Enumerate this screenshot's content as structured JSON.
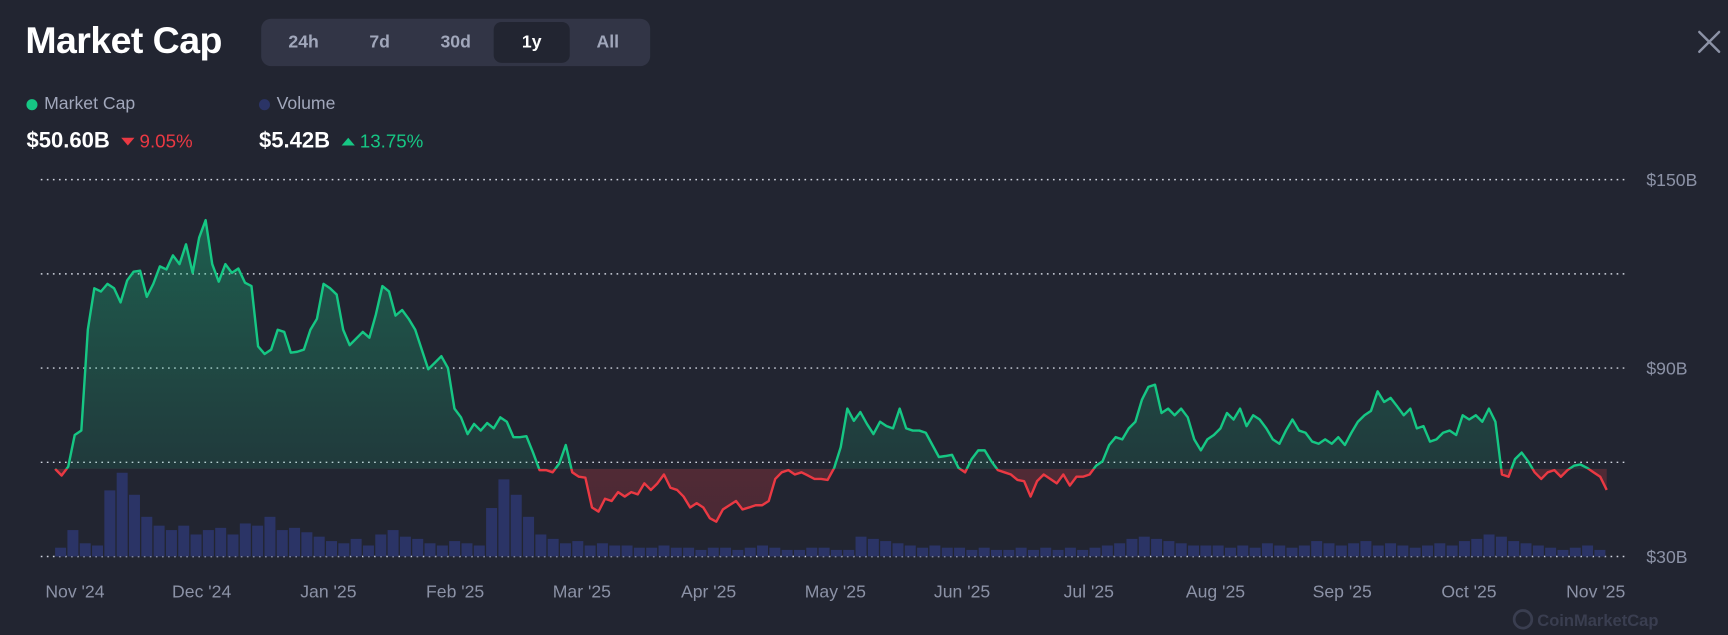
{
  "header": {
    "title": "Market Cap",
    "ranges": [
      "24h",
      "7d",
      "30d",
      "1y",
      "All"
    ],
    "active_range": "1y"
  },
  "legend": {
    "market_cap": {
      "label": "Market Cap",
      "value": "$50.60B",
      "change": "9.05%",
      "direction": "down",
      "color": "#16c784"
    },
    "volume": {
      "label": "Volume",
      "value": "$5.42B",
      "change": "13.75%",
      "direction": "up",
      "color": "#2b3466"
    }
  },
  "colors": {
    "up": "#16c784",
    "down": "#ea3943",
    "volume": "#2b3466",
    "background": "#222531"
  },
  "watermark": "CoinMarketCap",
  "chart_data": {
    "type": "area",
    "title": "",
    "xlabel": "",
    "ylabel": "",
    "ylim": [
      30,
      150
    ],
    "y_ticks": [
      150,
      120,
      90,
      60,
      30
    ],
    "y_tick_labels": [
      "$150B",
      "",
      "$90B",
      "",
      "$30B"
    ],
    "x_tick_labels": [
      "Nov '24",
      "Dec '24",
      "Jan '25",
      "Feb '25",
      "Mar '25",
      "Apr '25",
      "May '25",
      "Jun '25",
      "Jul '25",
      "Aug '25",
      "Sep '25",
      "Oct '25",
      "Nov '25"
    ],
    "grid": "horizontal dotted",
    "baseline": 57.9,
    "series": [
      {
        "values": [
          57.9,
          55.8,
          58.6,
          68.7,
          70.1,
          102.2,
          115.4,
          114.4,
          116.8,
          115.4,
          110.9,
          117.9,
          120.7,
          121.0,
          112.7,
          116.8,
          122.4,
          121.4,
          125.9,
          123.1,
          129.4,
          120.3,
          131.5,
          137.1,
          123.1,
          117.5,
          123.1,
          120.3,
          121.7,
          117.2,
          116.1,
          96.9,
          94.5,
          95.9,
          102.2,
          101.5,
          94.9,
          95.2,
          95.9,
          102.2,
          105.7,
          116.8,
          115.4,
          113.4,
          102.2,
          97.3,
          99.4,
          101.5,
          99.7,
          107.1,
          116.1,
          114.4,
          106.7,
          108.5,
          105.7,
          102.2,
          95.9,
          89.6,
          91.7,
          93.8,
          90.0,
          77.1,
          74.3,
          69.0,
          72.2,
          70.1,
          72.5,
          70.8,
          74.3,
          72.9,
          68.0,
          68.0,
          68.3,
          63.1,
          57.5,
          57.5,
          56.8,
          59.6,
          65.5,
          56.8,
          55.4,
          55.1,
          45.6,
          44.3,
          48.4,
          47.7,
          50.5,
          49.1,
          50.5,
          49.8,
          53.3,
          51.2,
          53.3,
          56.1,
          51.9,
          51.2,
          49.1,
          45.6,
          47.0,
          45.6,
          42.2,
          41.1,
          45.0,
          46.3,
          47.7,
          45.0,
          45.6,
          46.3,
          46.3,
          47.7,
          54.7,
          56.8,
          57.5,
          56.1,
          56.8,
          55.8,
          54.7,
          54.7,
          54.4,
          58.2,
          64.8,
          77.1,
          73.2,
          76.0,
          72.2,
          69.0,
          72.9,
          71.5,
          70.8,
          77.1,
          70.8,
          70.1,
          70.1,
          69.4,
          65.5,
          61.7,
          62.0,
          62.4,
          58.2,
          56.8,
          61.0,
          63.8,
          63.8,
          60.3,
          57.5,
          56.8,
          56.1,
          54.4,
          54.0,
          49.1,
          54.0,
          56.1,
          54.7,
          53.3,
          56.1,
          52.6,
          55.4,
          55.4,
          56.1,
          58.9,
          60.3,
          65.5,
          68.0,
          67.3,
          70.8,
          72.9,
          79.9,
          84.0,
          84.7,
          75.7,
          77.1,
          75.0,
          77.1,
          74.3,
          67.3,
          63.8,
          67.3,
          68.7,
          70.8,
          75.7,
          73.6,
          77.1,
          71.5,
          75.0,
          73.6,
          70.8,
          67.3,
          65.9,
          70.1,
          73.6,
          70.1,
          69.4,
          66.6,
          65.9,
          67.3,
          65.9,
          68.0,
          65.5,
          69.4,
          72.9,
          75.0,
          76.4,
          82.6,
          79.2,
          80.5,
          77.8,
          75.0,
          77.1,
          70.8,
          71.5,
          66.6,
          67.3,
          69.4,
          70.1,
          68.7,
          75.0,
          73.6,
          75.0,
          72.9,
          77.1,
          72.9,
          56.1,
          55.4,
          61.0,
          63.1,
          60.3,
          56.8,
          54.7,
          56.8,
          57.5,
          55.4,
          57.5,
          58.9,
          59.3,
          58.2,
          56.8,
          55.4,
          51.2
        ]
      },
      {
        "volume": [
          4,
          12,
          6,
          5,
          30,
          38,
          28,
          18,
          14,
          12,
          14,
          10,
          12,
          13,
          10,
          15,
          14,
          18,
          12,
          13,
          11,
          9,
          7,
          6,
          8,
          5,
          10,
          12,
          9,
          8,
          6,
          5,
          7,
          6,
          5,
          22,
          35,
          28,
          18,
          10,
          8,
          6,
          7,
          5,
          6,
          5,
          5,
          4,
          4,
          5,
          4,
          4,
          3,
          4,
          4,
          3,
          4,
          5,
          4,
          3,
          3,
          4,
          4,
          3,
          3,
          9,
          8,
          7,
          6,
          5,
          4,
          5,
          4,
          4,
          3,
          4,
          3,
          3,
          4,
          3,
          4,
          3,
          4,
          3,
          4,
          5,
          6,
          8,
          9,
          8,
          7,
          6,
          5,
          5,
          5,
          4,
          5,
          4,
          6,
          5,
          4,
          5,
          7,
          6,
          5,
          6,
          7,
          5,
          6,
          5,
          4,
          5,
          6,
          5,
          7,
          8,
          10,
          9,
          7,
          6,
          5,
          4,
          3,
          4,
          5,
          3
        ]
      }
    ]
  }
}
